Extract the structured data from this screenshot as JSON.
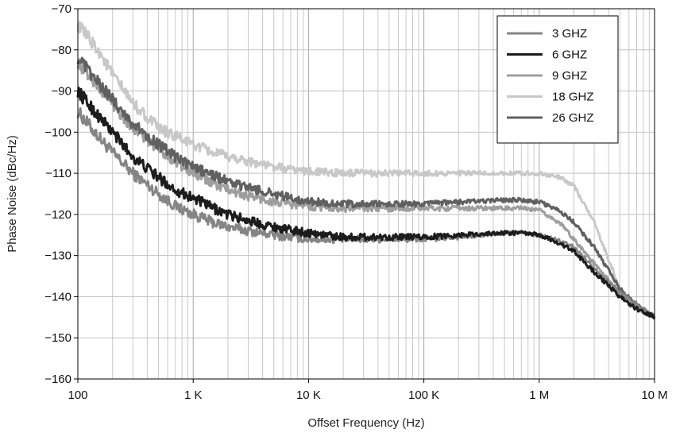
{
  "chart_data": {
    "type": "line",
    "title": "",
    "xlabel": "Offset Frequency (Hz)",
    "ylabel": "Phase Noise (dBc/Hz)",
    "xscale": "log",
    "xlim": [
      100,
      10000000
    ],
    "ylim": [
      -160,
      -70
    ],
    "grid": true,
    "legend_position": "top-right",
    "x_ticks": [
      {
        "value": 100,
        "label": "100"
      },
      {
        "value": 1000,
        "label": "1 K"
      },
      {
        "value": 10000,
        "label": "10 K"
      },
      {
        "value": 100000,
        "label": "100 K"
      },
      {
        "value": 1000000,
        "label": "1 M"
      },
      {
        "value": 10000000,
        "label": "10 M"
      }
    ],
    "y_ticks": [
      {
        "value": -70,
        "label": "−70"
      },
      {
        "value": -80,
        "label": "−80"
      },
      {
        "value": -90,
        "label": "−90"
      },
      {
        "value": -100,
        "label": "−100"
      },
      {
        "value": -110,
        "label": "−110"
      },
      {
        "value": -120,
        "label": "−120"
      },
      {
        "value": -130,
        "label": "−130"
      },
      {
        "value": -140,
        "label": "−140"
      },
      {
        "value": -150,
        "label": "−150"
      },
      {
        "value": -160,
        "label": "−160"
      }
    ],
    "x": [
      100,
      150,
      200,
      300,
      500,
      700,
      1000,
      1500,
      2000,
      3000,
      5000,
      7000,
      10000,
      20000,
      50000,
      100000,
      200000,
      500000,
      700000,
      1000000,
      1500000,
      2000000,
      3000000,
      5000000,
      7000000,
      10000000
    ],
    "series": [
      {
        "name": "3 GHZ",
        "color": "#858585",
        "width": 3,
        "values": [
          -95,
          -101,
          -105,
          -110,
          -115,
          -118,
          -120,
          -122,
          -123,
          -124,
          -125,
          -125.5,
          -126,
          -126,
          -126,
          -126,
          -125.5,
          -124.5,
          -124.5,
          -125,
          -126.5,
          -128,
          -133,
          -139,
          -142,
          -145
        ]
      },
      {
        "name": "6 GHZ",
        "color": "#1c1c1c",
        "width": 3,
        "values": [
          -90,
          -96,
          -100,
          -106,
          -111,
          -114,
          -116,
          -118.5,
          -120,
          -121.5,
          -123,
          -123.8,
          -124.5,
          -125.5,
          -125.5,
          -125.5,
          -125,
          -124.5,
          -124.5,
          -125,
          -127,
          -129,
          -134,
          -140,
          -143,
          -145
        ]
      },
      {
        "name": "9 GHZ",
        "color": "#9e9e9e",
        "width": 3,
        "values": [
          -83,
          -89,
          -93,
          -99,
          -104,
          -107,
          -110,
          -112.5,
          -114,
          -115.5,
          -117,
          -117.5,
          -118,
          -118.5,
          -118.5,
          -118.5,
          -118.5,
          -118.5,
          -118.5,
          -119,
          -122,
          -126,
          -132,
          -139,
          -142,
          -145
        ]
      },
      {
        "name": "18 GHZ",
        "color": "#c8c8c8",
        "width": 3,
        "values": [
          -74,
          -80,
          -86,
          -93,
          -99,
          -101,
          -103,
          -105,
          -106,
          -107,
          -108.5,
          -109,
          -109.5,
          -110,
          -110,
          -110,
          -110,
          -110,
          -110,
          -110,
          -111,
          -113,
          -122,
          -138,
          -143,
          -145
        ]
      },
      {
        "name": "26 GHZ",
        "color": "#606060",
        "width": 3,
        "values": [
          -82,
          -88,
          -92,
          -98,
          -103,
          -106,
          -108.5,
          -110.5,
          -112,
          -113.5,
          -115,
          -116,
          -116.8,
          -117.5,
          -117.5,
          -117.5,
          -117,
          -116.5,
          -116.5,
          -117,
          -119,
          -122,
          -128,
          -138,
          -142,
          -145
        ]
      }
    ]
  }
}
